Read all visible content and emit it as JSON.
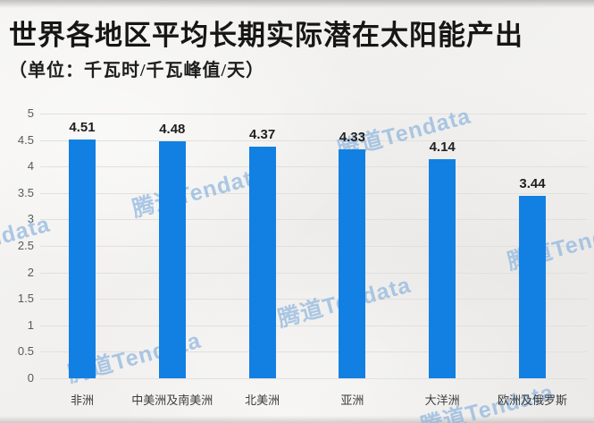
{
  "watermark": {
    "text": "腾道Tendata",
    "color_hex": "#8fb6de"
  },
  "chart_data": {
    "type": "bar",
    "title": "世界各地区平均长期实际潜在太阳能产出",
    "subtitle": "（单位：千瓦时/千瓦峰值/天）",
    "categories": [
      "非洲",
      "中美洲及南美洲",
      "北美洲",
      "亚洲",
      "大洋洲",
      "欧洲及俄罗斯"
    ],
    "values": [
      4.51,
      4.48,
      4.37,
      4.33,
      4.14,
      3.44
    ],
    "value_labels": [
      "4.51",
      "4.48",
      "4.37",
      "4.33",
      "4.14",
      "3.44"
    ],
    "xlabel": "",
    "ylabel": "",
    "ylim": [
      0,
      5
    ],
    "yticks": [
      0,
      0.5,
      1,
      1.5,
      2,
      2.5,
      3,
      3.5,
      4,
      4.5,
      5
    ],
    "grid": true,
    "legend": "none",
    "bar_color_hex": "#1280e2",
    "value_label_color_hex": "#1f1f1f"
  }
}
